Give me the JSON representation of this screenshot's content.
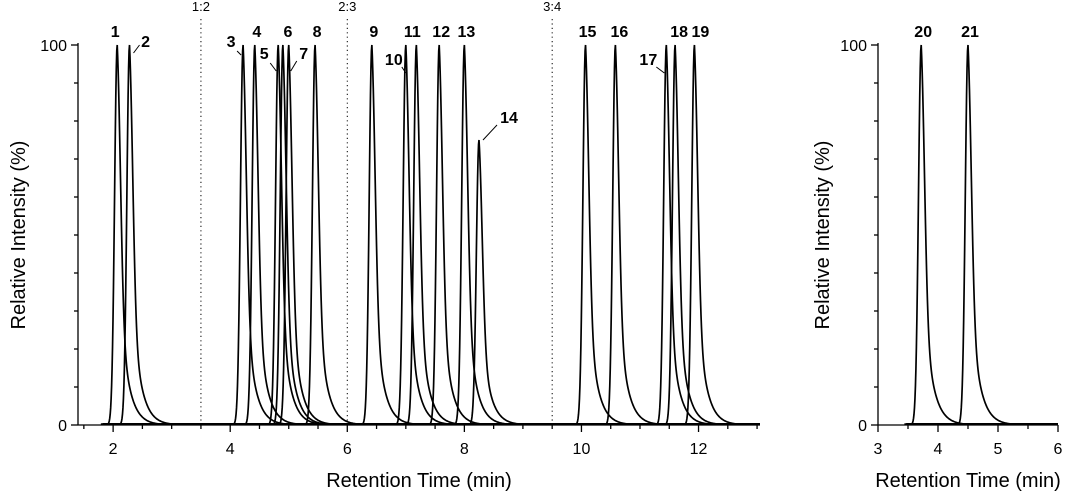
{
  "chart_data": [
    {
      "type": "line",
      "panel": "left",
      "xlabel": "Retention Time (min)",
      "ylabel": "Relative Intensity (%)",
      "xlim": [
        1.4,
        13.05
      ],
      "ylim": [
        0,
        100
      ],
      "xticks": [
        2,
        4,
        6,
        8,
        10,
        12
      ],
      "yticks": [
        0,
        100
      ],
      "grid": false,
      "separators": [
        {
          "x": 3.5,
          "label": "1:2"
        },
        {
          "x": 6.0,
          "label": "2:3"
        },
        {
          "x": 9.5,
          "label": "3:4"
        }
      ],
      "peaks": [
        {
          "label": "1",
          "x": 2.07,
          "y": 100
        },
        {
          "label": "2",
          "x": 2.28,
          "y": 100
        },
        {
          "label": "3",
          "x": 4.22,
          "y": 100
        },
        {
          "label": "4",
          "x": 4.42,
          "y": 100
        },
        {
          "label": "5",
          "x": 4.82,
          "y": 100
        },
        {
          "label": "6",
          "x": 4.9,
          "y": 100
        },
        {
          "label": "7",
          "x": 5.0,
          "y": 100
        },
        {
          "label": "8",
          "x": 5.45,
          "y": 100
        },
        {
          "label": "9",
          "x": 6.42,
          "y": 100
        },
        {
          "label": "10",
          "x": 7.0,
          "y": 100
        },
        {
          "label": "11",
          "x": 7.18,
          "y": 100
        },
        {
          "label": "12",
          "x": 7.57,
          "y": 100
        },
        {
          "label": "13",
          "x": 8.0,
          "y": 100
        },
        {
          "label": "14",
          "x": 8.25,
          "y": 75
        },
        {
          "label": "15",
          "x": 10.07,
          "y": 100
        },
        {
          "label": "16",
          "x": 10.58,
          "y": 100
        },
        {
          "label": "17",
          "x": 11.45,
          "y": 100
        },
        {
          "label": "18",
          "x": 11.6,
          "y": 100
        },
        {
          "label": "19",
          "x": 11.93,
          "y": 100
        }
      ]
    },
    {
      "type": "line",
      "panel": "right",
      "xlabel": "Retention Time (min)",
      "ylabel": "Relative Intensity (%)",
      "xlim": [
        3,
        6
      ],
      "ylim": [
        0,
        100
      ],
      "xticks": [
        3,
        4,
        5,
        6
      ],
      "yticks": [
        0,
        100
      ],
      "grid": false,
      "separators": [],
      "peaks": [
        {
          "label": "20",
          "x": 3.72,
          "y": 100
        },
        {
          "label": "21",
          "x": 4.5,
          "y": 100
        }
      ]
    }
  ]
}
